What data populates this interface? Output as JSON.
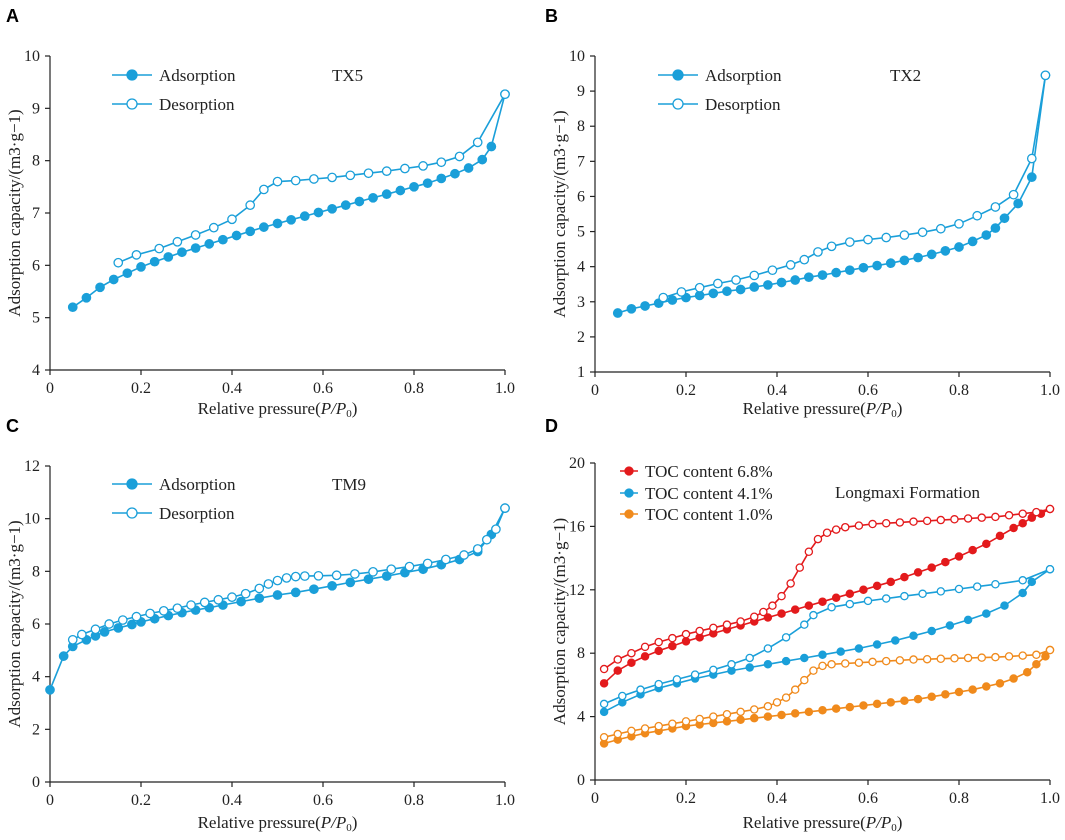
{
  "colors": {
    "blue": "#1a9fd9",
    "red": "#e31a1c",
    "orange": "#f08a1c",
    "axis": "#222222"
  },
  "chart_data": [
    {
      "panel": "A",
      "type": "line",
      "sample_label": "TX5",
      "xlabel_prefix": "Relative pressure(",
      "xlabel_var": "P/P",
      "xlabel_sub": "0",
      "xlabel_suffix": ")",
      "ylabel": "Adsorption capacity/(m3·g−1)",
      "xlim": [
        0,
        1.0
      ],
      "ylim": [
        4,
        10
      ],
      "xticks": [
        0,
        0.2,
        0.4,
        0.6,
        0.8,
        1.0
      ],
      "xtick_labels": [
        "0",
        "0.2",
        "0.4",
        "0.6",
        "0.8",
        "1.0"
      ],
      "yticks": [
        4,
        5,
        6,
        7,
        8,
        9,
        10
      ],
      "ytick_labels": [
        "4",
        "5",
        "6",
        "7",
        "8",
        "9",
        "10"
      ],
      "legend": [
        "Adsorption",
        "Desorption"
      ],
      "series": [
        {
          "name": "Adsorption",
          "filled": true,
          "color": "#1a9fd9",
          "x": [
            0.05,
            0.08,
            0.11,
            0.14,
            0.17,
            0.2,
            0.23,
            0.26,
            0.29,
            0.32,
            0.35,
            0.38,
            0.41,
            0.44,
            0.47,
            0.5,
            0.53,
            0.56,
            0.59,
            0.62,
            0.65,
            0.68,
            0.71,
            0.74,
            0.77,
            0.8,
            0.83,
            0.86,
            0.89,
            0.92,
            0.95,
            0.97,
            1.0
          ],
          "y": [
            5.2,
            5.38,
            5.58,
            5.73,
            5.85,
            5.97,
            6.07,
            6.16,
            6.25,
            6.33,
            6.41,
            6.49,
            6.57,
            6.65,
            6.73,
            6.8,
            6.87,
            6.94,
            7.01,
            7.08,
            7.15,
            7.22,
            7.29,
            7.36,
            7.43,
            7.5,
            7.57,
            7.66,
            7.75,
            7.86,
            8.02,
            8.27,
            9.27
          ]
        },
        {
          "name": "Desorption",
          "filled": false,
          "color": "#1a9fd9",
          "x": [
            0.15,
            0.19,
            0.24,
            0.28,
            0.32,
            0.36,
            0.4,
            0.44,
            0.47,
            0.5,
            0.54,
            0.58,
            0.62,
            0.66,
            0.7,
            0.74,
            0.78,
            0.82,
            0.86,
            0.9,
            0.94,
            1.0
          ],
          "y": [
            6.05,
            6.2,
            6.32,
            6.45,
            6.58,
            6.72,
            6.88,
            7.15,
            7.45,
            7.6,
            7.62,
            7.65,
            7.68,
            7.72,
            7.76,
            7.8,
            7.85,
            7.9,
            7.97,
            8.08,
            8.35,
            9.27
          ]
        }
      ]
    },
    {
      "panel": "B",
      "type": "line",
      "sample_label": "TX2",
      "xlabel_prefix": "Relative pressure(",
      "xlabel_var": "P/P",
      "xlabel_sub": "0",
      "xlabel_suffix": ")",
      "ylabel": "Adsorption capacity/(m3·g−1)",
      "xlim": [
        0,
        1.0
      ],
      "ylim": [
        1,
        10
      ],
      "xticks": [
        0,
        0.2,
        0.4,
        0.6,
        0.8,
        1.0
      ],
      "xtick_labels": [
        "0",
        "0.2",
        "0.4",
        "0.6",
        "0.8",
        "1.0"
      ],
      "yticks": [
        1,
        2,
        3,
        4,
        5,
        6,
        7,
        8,
        9,
        10
      ],
      "ytick_labels": [
        "1",
        "2",
        "3",
        "4",
        "5",
        "6",
        "7",
        "8",
        "9",
        "10"
      ],
      "legend": [
        "Adsorption",
        "Desorption"
      ],
      "series": [
        {
          "name": "Adsorption",
          "filled": true,
          "color": "#1a9fd9",
          "x": [
            0.05,
            0.08,
            0.11,
            0.14,
            0.17,
            0.2,
            0.23,
            0.26,
            0.29,
            0.32,
            0.35,
            0.38,
            0.41,
            0.44,
            0.47,
            0.5,
            0.53,
            0.56,
            0.59,
            0.62,
            0.65,
            0.68,
            0.71,
            0.74,
            0.77,
            0.8,
            0.83,
            0.86,
            0.88,
            0.9,
            0.93,
            0.96,
            0.99
          ],
          "y": [
            2.68,
            2.8,
            2.88,
            2.96,
            3.05,
            3.12,
            3.18,
            3.24,
            3.3,
            3.35,
            3.42,
            3.48,
            3.55,
            3.62,
            3.7,
            3.76,
            3.83,
            3.9,
            3.97,
            4.03,
            4.1,
            4.18,
            4.26,
            4.35,
            4.45,
            4.56,
            4.72,
            4.9,
            5.1,
            5.38,
            5.8,
            6.55,
            9.45
          ]
        },
        {
          "name": "Desorption",
          "filled": false,
          "color": "#1a9fd9",
          "x": [
            0.15,
            0.19,
            0.23,
            0.27,
            0.31,
            0.35,
            0.39,
            0.43,
            0.46,
            0.49,
            0.52,
            0.56,
            0.6,
            0.64,
            0.68,
            0.72,
            0.76,
            0.8,
            0.84,
            0.88,
            0.92,
            0.96,
            0.99
          ],
          "y": [
            3.12,
            3.28,
            3.4,
            3.52,
            3.62,
            3.75,
            3.9,
            4.05,
            4.2,
            4.42,
            4.58,
            4.7,
            4.77,
            4.83,
            4.9,
            4.98,
            5.08,
            5.22,
            5.45,
            5.7,
            6.05,
            7.08,
            9.45
          ]
        }
      ]
    },
    {
      "panel": "C",
      "type": "line",
      "sample_label": "TM9",
      "xlabel_prefix": "Relative pressure(",
      "xlabel_var": "P/P",
      "xlabel_sub": "0",
      "xlabel_suffix": ")",
      "ylabel": "Adsorption capacity/(m3·g−1)",
      "xlim": [
        0,
        1.0
      ],
      "ylim": [
        0,
        12
      ],
      "xticks": [
        0,
        0.2,
        0.4,
        0.6,
        0.8,
        1.0
      ],
      "xtick_labels": [
        "0",
        "0.2",
        "0.4",
        "0.6",
        "0.8",
        "1.0"
      ],
      "yticks": [
        0,
        2,
        4,
        6,
        8,
        10,
        12
      ],
      "ytick_labels": [
        "0",
        "2",
        "4",
        "6",
        "8",
        "10",
        "12"
      ],
      "legend": [
        "Adsorption",
        "Desorption"
      ],
      "series": [
        {
          "name": "Adsorption",
          "filled": true,
          "color": "#1a9fd9",
          "x": [
            0.0,
            0.03,
            0.05,
            0.08,
            0.1,
            0.12,
            0.15,
            0.18,
            0.2,
            0.23,
            0.26,
            0.29,
            0.32,
            0.35,
            0.38,
            0.42,
            0.46,
            0.5,
            0.54,
            0.58,
            0.62,
            0.66,
            0.7,
            0.74,
            0.78,
            0.82,
            0.86,
            0.9,
            0.94,
            0.97,
            1.0
          ],
          "y": [
            3.5,
            4.78,
            5.15,
            5.4,
            5.55,
            5.7,
            5.85,
            5.98,
            6.08,
            6.2,
            6.32,
            6.43,
            6.53,
            6.62,
            6.72,
            6.85,
            6.98,
            7.1,
            7.2,
            7.32,
            7.45,
            7.58,
            7.7,
            7.82,
            7.95,
            8.08,
            8.25,
            8.45,
            8.75,
            9.4,
            10.4
          ]
        },
        {
          "name": "Desorption",
          "filled": false,
          "color": "#1a9fd9",
          "x": [
            0.05,
            0.07,
            0.1,
            0.13,
            0.16,
            0.19,
            0.22,
            0.25,
            0.28,
            0.31,
            0.34,
            0.37,
            0.4,
            0.43,
            0.46,
            0.48,
            0.5,
            0.52,
            0.54,
            0.56,
            0.59,
            0.63,
            0.67,
            0.71,
            0.75,
            0.79,
            0.83,
            0.87,
            0.91,
            0.94,
            0.96,
            0.98,
            1.0
          ],
          "y": [
            5.4,
            5.6,
            5.8,
            6.0,
            6.15,
            6.28,
            6.4,
            6.5,
            6.6,
            6.72,
            6.82,
            6.92,
            7.02,
            7.15,
            7.35,
            7.52,
            7.65,
            7.75,
            7.8,
            7.82,
            7.83,
            7.85,
            7.9,
            7.98,
            8.08,
            8.18,
            8.3,
            8.45,
            8.62,
            8.85,
            9.2,
            9.6,
            10.4
          ]
        }
      ]
    },
    {
      "panel": "D",
      "type": "line",
      "sample_label": "Longmaxi Formation",
      "xlabel_prefix": "Relative pressure(",
      "xlabel_var": "P/P",
      "xlabel_sub": "0",
      "xlabel_suffix": ")",
      "ylabel": "Adsorption capacity/(m3·g−1)",
      "xlim": [
        0,
        1.0
      ],
      "ylim": [
        0,
        20
      ],
      "xticks": [
        0,
        0.2,
        0.4,
        0.6,
        0.8,
        1.0
      ],
      "xtick_labels": [
        "0",
        "0.2",
        "0.4",
        "0.6",
        "0.8",
        "1.0"
      ],
      "yticks": [
        0,
        4,
        8,
        12,
        16,
        20
      ],
      "ytick_labels": [
        "0",
        "4",
        "8",
        "12",
        "16",
        "20"
      ],
      "legend": [
        "TOC content 6.8%",
        "TOC content 4.1%",
        "TOC content 1.0%"
      ],
      "series": [
        {
          "name": "TOC content 6.8% adsorption",
          "filled": true,
          "color": "#e31a1c",
          "x": [
            0.02,
            0.05,
            0.08,
            0.11,
            0.14,
            0.17,
            0.2,
            0.23,
            0.26,
            0.29,
            0.32,
            0.35,
            0.38,
            0.41,
            0.44,
            0.47,
            0.5,
            0.53,
            0.56,
            0.59,
            0.62,
            0.65,
            0.68,
            0.71,
            0.74,
            0.77,
            0.8,
            0.83,
            0.86,
            0.89,
            0.92,
            0.94,
            0.96,
            0.98,
            1.0
          ],
          "y": [
            6.1,
            6.9,
            7.4,
            7.8,
            8.15,
            8.45,
            8.75,
            9.0,
            9.25,
            9.5,
            9.75,
            10.0,
            10.25,
            10.5,
            10.75,
            11.0,
            11.25,
            11.5,
            11.75,
            12.0,
            12.25,
            12.5,
            12.8,
            13.1,
            13.4,
            13.75,
            14.1,
            14.5,
            14.9,
            15.4,
            15.9,
            16.2,
            16.55,
            16.8,
            17.1
          ]
        },
        {
          "name": "TOC content 6.8% desorption",
          "filled": false,
          "color": "#e31a1c",
          "x": [
            0.02,
            0.05,
            0.08,
            0.11,
            0.14,
            0.17,
            0.2,
            0.23,
            0.26,
            0.29,
            0.32,
            0.35,
            0.37,
            0.39,
            0.41,
            0.43,
            0.45,
            0.47,
            0.49,
            0.51,
            0.53,
            0.55,
            0.58,
            0.61,
            0.64,
            0.67,
            0.7,
            0.73,
            0.76,
            0.79,
            0.82,
            0.85,
            0.88,
            0.91,
            0.94,
            0.97,
            1.0
          ],
          "y": [
            7.0,
            7.6,
            8.0,
            8.4,
            8.7,
            8.95,
            9.2,
            9.4,
            9.6,
            9.8,
            10.0,
            10.3,
            10.6,
            11.0,
            11.6,
            12.4,
            13.4,
            14.4,
            15.2,
            15.6,
            15.8,
            15.95,
            16.05,
            16.15,
            16.2,
            16.25,
            16.3,
            16.35,
            16.4,
            16.45,
            16.5,
            16.55,
            16.6,
            16.7,
            16.8,
            16.9,
            17.1
          ]
        },
        {
          "name": "TOC content 4.1% adsorption",
          "filled": true,
          "color": "#1a9fd9",
          "x": [
            0.02,
            0.06,
            0.1,
            0.14,
            0.18,
            0.22,
            0.26,
            0.3,
            0.34,
            0.38,
            0.42,
            0.46,
            0.5,
            0.54,
            0.58,
            0.62,
            0.66,
            0.7,
            0.74,
            0.78,
            0.82,
            0.86,
            0.9,
            0.94,
            0.96,
            1.0
          ],
          "y": [
            4.3,
            4.9,
            5.4,
            5.8,
            6.1,
            6.4,
            6.65,
            6.9,
            7.1,
            7.3,
            7.5,
            7.7,
            7.9,
            8.1,
            8.3,
            8.55,
            8.8,
            9.1,
            9.4,
            9.75,
            10.1,
            10.5,
            11.0,
            11.8,
            12.5,
            13.3
          ]
        },
        {
          "name": "TOC content 4.1% desorption",
          "filled": false,
          "color": "#1a9fd9",
          "x": [
            0.02,
            0.06,
            0.1,
            0.14,
            0.18,
            0.22,
            0.26,
            0.3,
            0.34,
            0.38,
            0.42,
            0.46,
            0.48,
            0.52,
            0.56,
            0.6,
            0.64,
            0.68,
            0.72,
            0.76,
            0.8,
            0.84,
            0.88,
            0.94,
            1.0
          ],
          "y": [
            4.8,
            5.3,
            5.7,
            6.05,
            6.35,
            6.65,
            6.95,
            7.3,
            7.7,
            8.3,
            9.0,
            9.8,
            10.4,
            10.9,
            11.1,
            11.3,
            11.45,
            11.6,
            11.75,
            11.9,
            12.05,
            12.2,
            12.35,
            12.6,
            13.3
          ]
        },
        {
          "name": "TOC content 1.0% adsorption",
          "filled": true,
          "color": "#f08a1c",
          "x": [
            0.02,
            0.05,
            0.08,
            0.11,
            0.14,
            0.17,
            0.2,
            0.23,
            0.26,
            0.29,
            0.32,
            0.35,
            0.38,
            0.41,
            0.44,
            0.47,
            0.5,
            0.53,
            0.56,
            0.59,
            0.62,
            0.65,
            0.68,
            0.71,
            0.74,
            0.77,
            0.8,
            0.83,
            0.86,
            0.89,
            0.92,
            0.95,
            0.97,
            0.99,
            1.0
          ],
          "y": [
            2.3,
            2.55,
            2.75,
            2.95,
            3.1,
            3.25,
            3.4,
            3.5,
            3.6,
            3.7,
            3.8,
            3.9,
            4.0,
            4.1,
            4.2,
            4.3,
            4.4,
            4.5,
            4.6,
            4.7,
            4.8,
            4.9,
            5.0,
            5.1,
            5.25,
            5.4,
            5.55,
            5.7,
            5.9,
            6.1,
            6.4,
            6.8,
            7.3,
            7.8,
            8.2
          ]
        },
        {
          "name": "TOC content 1.0% desorption",
          "filled": false,
          "color": "#f08a1c",
          "x": [
            0.02,
            0.05,
            0.08,
            0.11,
            0.14,
            0.17,
            0.2,
            0.23,
            0.26,
            0.29,
            0.32,
            0.35,
            0.38,
            0.4,
            0.42,
            0.44,
            0.46,
            0.48,
            0.5,
            0.52,
            0.55,
            0.58,
            0.61,
            0.64,
            0.67,
            0.7,
            0.73,
            0.76,
            0.79,
            0.82,
            0.85,
            0.88,
            0.91,
            0.94,
            0.97,
            1.0
          ],
          "y": [
            2.7,
            2.9,
            3.1,
            3.25,
            3.4,
            3.55,
            3.7,
            3.85,
            4.0,
            4.15,
            4.3,
            4.45,
            4.65,
            4.9,
            5.2,
            5.7,
            6.3,
            6.9,
            7.2,
            7.3,
            7.35,
            7.4,
            7.45,
            7.5,
            7.55,
            7.6,
            7.62,
            7.65,
            7.68,
            7.7,
            7.72,
            7.75,
            7.8,
            7.85,
            7.9,
            8.2
          ]
        }
      ]
    }
  ]
}
